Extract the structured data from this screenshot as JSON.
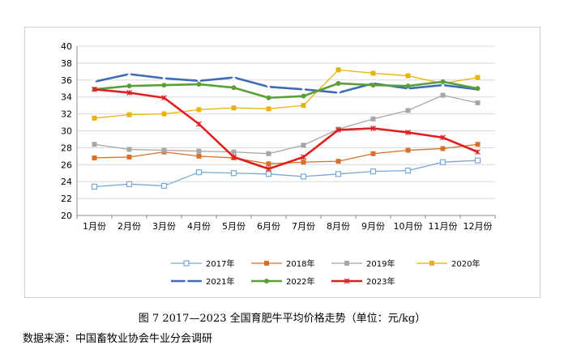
{
  "chart_data": {
    "type": "line",
    "categories": [
      "1月份",
      "2月份",
      "3月份",
      "4月份",
      "5月份",
      "6月份",
      "7月份",
      "8月份",
      "9月份",
      "10月份",
      "11月份",
      "12月份"
    ],
    "ylim": [
      20,
      40
    ],
    "yticks": [
      20,
      22,
      24,
      26,
      28,
      30,
      32,
      34,
      36,
      38,
      40
    ],
    "legend_position": "bottom",
    "series": [
      {
        "name": "2017年",
        "color": "#7ba7d4",
        "marker": "square-open",
        "values": [
          23.4,
          23.7,
          23.5,
          25.1,
          25.0,
          24.9,
          24.6,
          24.9,
          25.2,
          25.3,
          26.3,
          26.5
        ]
      },
      {
        "name": "2018年",
        "color": "#d9702a",
        "marker": "square",
        "values": [
          26.8,
          26.9,
          27.5,
          27.0,
          26.8,
          26.1,
          26.3,
          26.4,
          27.3,
          27.7,
          27.9,
          28.4
        ]
      },
      {
        "name": "2019年",
        "color": "#a6a6a6",
        "marker": "square",
        "values": [
          28.4,
          27.8,
          27.7,
          27.6,
          27.5,
          27.3,
          28.3,
          30.2,
          31.4,
          32.4,
          34.2,
          33.3
        ]
      },
      {
        "name": "2020年",
        "color": "#e8b30f",
        "marker": "square",
        "values": [
          31.5,
          31.9,
          32.0,
          32.5,
          32.7,
          32.6,
          33.0,
          37.2,
          36.8,
          36.5,
          35.6,
          36.3
        ]
      },
      {
        "name": "2021年",
        "color": "#3f6cb4",
        "marker": "star",
        "values": [
          35.8,
          36.7,
          36.2,
          35.9,
          36.3,
          35.2,
          34.9,
          34.5,
          35.6,
          35.0,
          35.4,
          34.9
        ]
      },
      {
        "name": "2022年",
        "color": "#5a9e3a",
        "marker": "circle",
        "values": [
          34.9,
          35.3,
          35.4,
          35.5,
          35.1,
          33.9,
          34.1,
          35.6,
          35.4,
          35.3,
          35.8,
          35.0
        ]
      },
      {
        "name": "2023年",
        "color": "#e02020",
        "marker": "star-small",
        "values": [
          34.9,
          34.5,
          33.9,
          30.8,
          26.9,
          25.5,
          26.9,
          30.1,
          30.3,
          29.8,
          29.2,
          27.5
        ]
      }
    ]
  },
  "caption": "图 7   2017—2023 全国育肥牛平均价格走势（单位：元/kg）",
  "source": "数据来源：中国畜牧业协会牛业分会调研"
}
